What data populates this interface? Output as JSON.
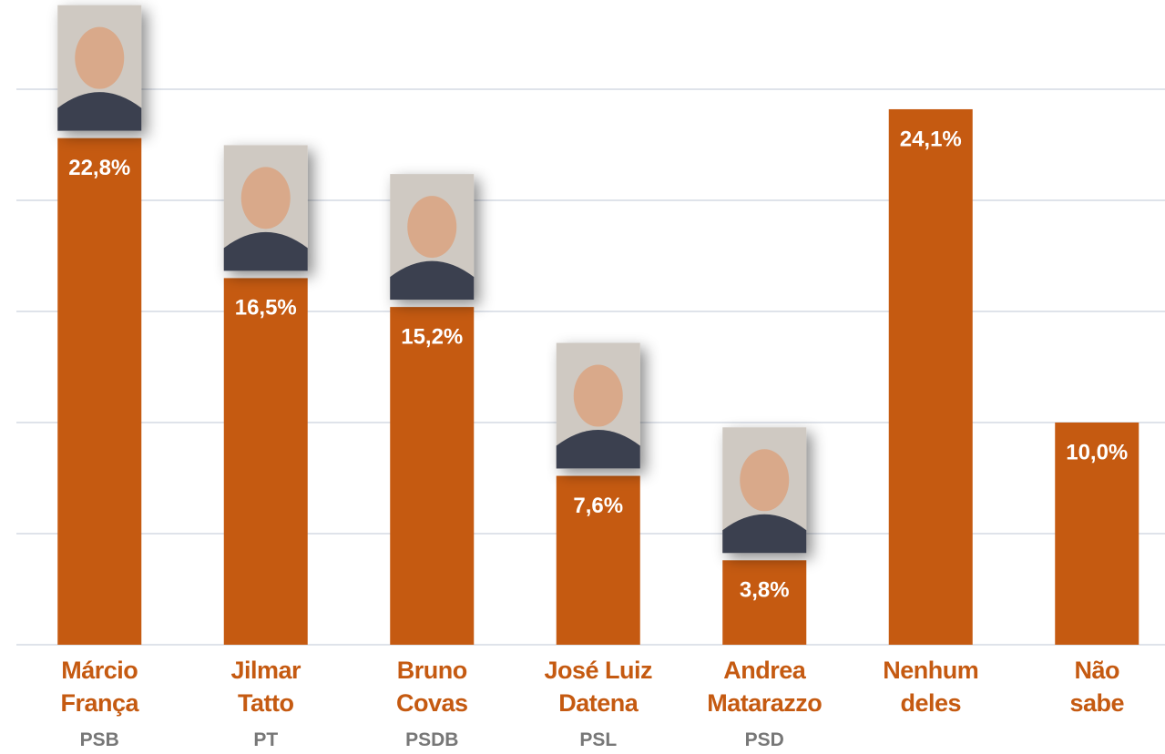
{
  "chart_data": {
    "type": "bar",
    "categories": [
      "Márcio\nFrança",
      "Jilmar\nTatto",
      "Bruno\nCovas",
      "José Luiz\nDatena",
      "Andrea\nMatarazzo",
      "Nenhum\ndeles",
      "Não\nsabe"
    ],
    "parties": [
      "PSB",
      "PT",
      "PSDB",
      "PSL",
      "PSD",
      null,
      null
    ],
    "values": [
      22.8,
      16.5,
      15.2,
      7.6,
      3.8,
      24.1,
      10.0
    ],
    "value_labels": [
      "22,8%",
      "16,5%",
      "15,2%",
      "7,6%",
      "3,8%",
      "24,1%",
      "10,0%"
    ],
    "color": "#c55a11",
    "ylim": [
      0,
      25
    ],
    "yticks": [
      0,
      5,
      10,
      15,
      20,
      25
    ],
    "grid": true
  }
}
